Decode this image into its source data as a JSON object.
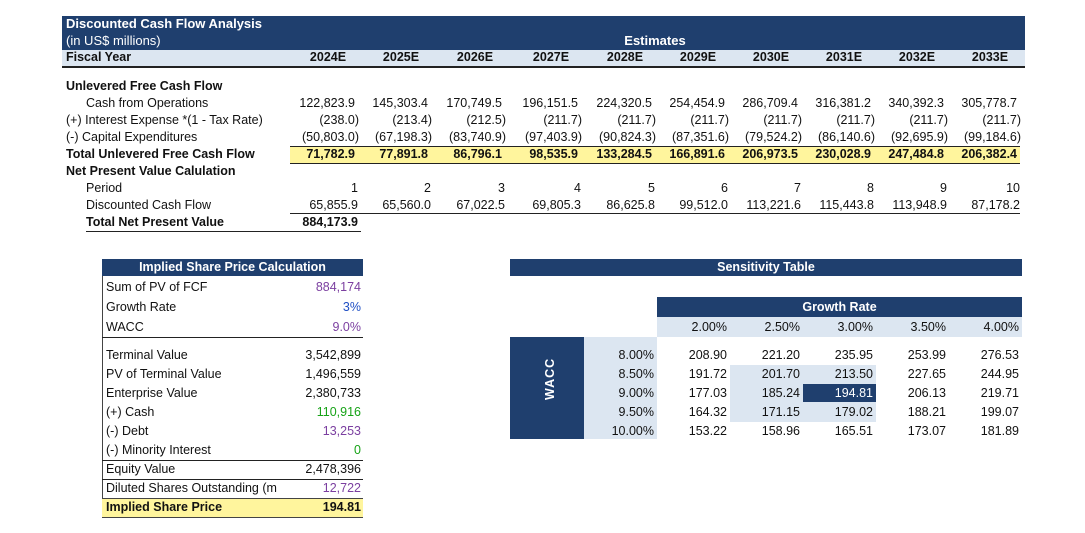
{
  "header": {
    "title": "Discounted Cash Flow Analysis",
    "subtitle": "(in US$ millions)",
    "estimates_label": "Estimates",
    "fiscal_year_label": "Fiscal Year",
    "years": [
      "2024E",
      "2025E",
      "2026E",
      "2027E",
      "2028E",
      "2029E",
      "2030E",
      "2031E",
      "2032E",
      "2033E"
    ]
  },
  "ufcf": {
    "section_label": "Unlevered Free Cash Flow",
    "rows": [
      {
        "label": "Cash from Operations",
        "values": [
          "122,823.9",
          "145,303.4",
          "170,749.5",
          "196,151.5",
          "224,320.5",
          "254,454.9",
          "286,709.4",
          "316,381.2",
          "340,392.3",
          "305,778.7"
        ]
      },
      {
        "label": "(+) Interest Expense *(1 - Tax Rate)",
        "values": [
          "(238.0)",
          "(213.4)",
          "(212.5)",
          "(211.7)",
          "(211.7)",
          "(211.7)",
          "(211.7)",
          "(211.7)",
          "(211.7)",
          "(211.7)"
        ]
      },
      {
        "label": "(-) Capital Expenditures",
        "values": [
          "(50,803.0)",
          "(67,198.3)",
          "(83,740.9)",
          "(97,403.9)",
          "(90,824.3)",
          "(87,351.6)",
          "(79,524.2)",
          "(86,140.6)",
          "(92,695.9)",
          "(99,184.6)"
        ]
      }
    ],
    "total_label": "Total Unlevered Free Cash Flow",
    "total_values": [
      "71,782.9",
      "77,891.8",
      "86,796.1",
      "98,535.9",
      "133,284.5",
      "166,891.6",
      "206,973.5",
      "230,028.9",
      "247,484.8",
      "206,382.4"
    ]
  },
  "npv": {
    "section_label": "Net Present Value Calulation",
    "period_label": "Period",
    "periods": [
      "1",
      "2",
      "3",
      "4",
      "5",
      "6",
      "7",
      "8",
      "9",
      "10"
    ],
    "dcf_label": "Discounted Cash Flow",
    "dcf_values": [
      "65,855.9",
      "65,560.0",
      "67,022.5",
      "69,805.3",
      "86,625.8",
      "99,512.0",
      "113,221.6",
      "115,443.8",
      "113,948.9",
      "87,178.2"
    ],
    "total_label": "Total Net Present Value",
    "total_value": "884,173.9"
  },
  "share_price": {
    "title": "Implied Share Price Calculation",
    "top_rows": [
      {
        "label": "Sum of PV of FCF",
        "value": "884,174",
        "color": "purple"
      },
      {
        "label": "Growth Rate",
        "value": "3%",
        "color": "blue"
      },
      {
        "label": "WACC",
        "value": "9.0%",
        "color": "purple"
      }
    ],
    "bottom_rows": [
      {
        "label": "Terminal Value",
        "value": "3,542,899",
        "color": "black"
      },
      {
        "label": "PV of Terminal Value",
        "value": "1,496,559",
        "color": "black"
      },
      {
        "label": "Enterprise Value",
        "value": "2,380,733",
        "color": "black"
      },
      {
        "label": "(+) Cash",
        "value": "110,916",
        "color": "green"
      },
      {
        "label": "(-) Debt",
        "value": "13,253",
        "color": "purple"
      },
      {
        "label": "(-) Minority Interest",
        "value": "0",
        "color": "green"
      },
      {
        "label": "Equity Value",
        "value": "2,478,396",
        "color": "black"
      },
      {
        "label": "Diluted Shares Outstanding (m",
        "value": "12,722",
        "color": "purple"
      }
    ],
    "result_label": "Implied Share Price",
    "result_value": "194.81"
  },
  "sensitivity": {
    "title": "Sensitivity Table",
    "growth_label": "Growth Rate",
    "wacc_label": "WACC",
    "growth_rates": [
      "2.00%",
      "2.50%",
      "3.00%",
      "3.50%",
      "4.00%"
    ],
    "wacc_rates": [
      "8.00%",
      "8.50%",
      "9.00%",
      "9.50%",
      "10.00%"
    ],
    "values": [
      [
        "208.90",
        "221.20",
        "235.95",
        "253.99",
        "276.53"
      ],
      [
        "191.72",
        "201.70",
        "213.50",
        "227.65",
        "244.95"
      ],
      [
        "177.03",
        "185.24",
        "194.81",
        "206.13",
        "219.71"
      ],
      [
        "164.32",
        "171.15",
        "179.02",
        "188.21",
        "199.07"
      ],
      [
        "153.22",
        "158.96",
        "165.51",
        "173.07",
        "181.89"
      ]
    ]
  },
  "colors": {
    "navy": "#1f3f6e",
    "light_blue": "#dce6f1",
    "highlight_yellow": "#fff59d",
    "purple_input": "#7b3fa0",
    "blue_input": "#1f4fc4",
    "green_input": "#17a317"
  }
}
